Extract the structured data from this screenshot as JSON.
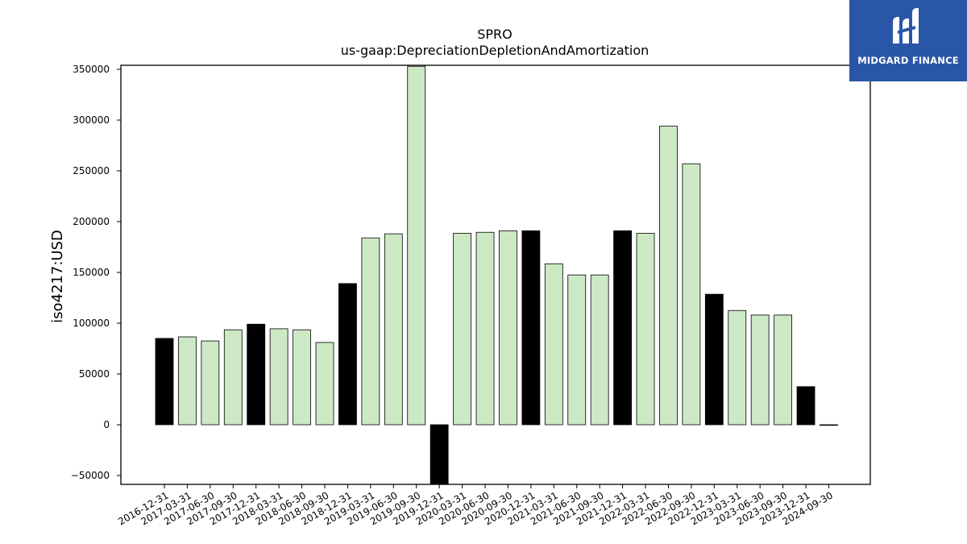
{
  "logo": {
    "text": "MIDGARD FINANCE"
  },
  "chart_data": {
    "type": "bar",
    "title": "SPRO",
    "subtitle": "us-gaap:DepreciationDepletionAndAmortization",
    "ylabel": "iso4217:USD",
    "xlabel": "",
    "ylim": [
      -58000,
      353000
    ],
    "yticks": [
      -50000,
      0,
      50000,
      100000,
      150000,
      200000,
      250000,
      300000,
      350000
    ],
    "grid": false,
    "colors": {
      "quarter": "#cce8c4",
      "year_end": "#000000",
      "edge": "#000000"
    },
    "categories": [
      "2016-12-31",
      "2017-03-31",
      "2017-06-30",
      "2017-09-30",
      "2017-12-31",
      "2018-03-31",
      "2018-06-30",
      "2018-09-30",
      "2018-12-31",
      "2019-03-31",
      "2019-06-30",
      "2019-09-30",
      "2019-12-31",
      "2020-03-31",
      "2020-06-30",
      "2020-09-30",
      "2020-12-31",
      "2021-03-31",
      "2021-06-30",
      "2021-09-30",
      "2021-12-31",
      "2022-03-31",
      "2022-06-30",
      "2022-09-30",
      "2022-12-31",
      "2023-03-31",
      "2023-06-30",
      "2023-09-30",
      "2023-12-31",
      "2024-09-30"
    ],
    "values": [
      85000,
      86500,
      82500,
      93500,
      99000,
      94500,
      93500,
      81000,
      139000,
      184000,
      188000,
      353000,
      -58000,
      188500,
      189500,
      191000,
      191000,
      158500,
      147500,
      147500,
      191000,
      188500,
      294000,
      257000,
      128500,
      112500,
      108000,
      108000,
      37500,
      0
    ],
    "year_end": [
      true,
      false,
      false,
      false,
      true,
      false,
      false,
      false,
      true,
      false,
      false,
      false,
      true,
      false,
      false,
      false,
      true,
      false,
      false,
      false,
      true,
      false,
      false,
      false,
      true,
      false,
      false,
      false,
      true,
      false
    ]
  }
}
